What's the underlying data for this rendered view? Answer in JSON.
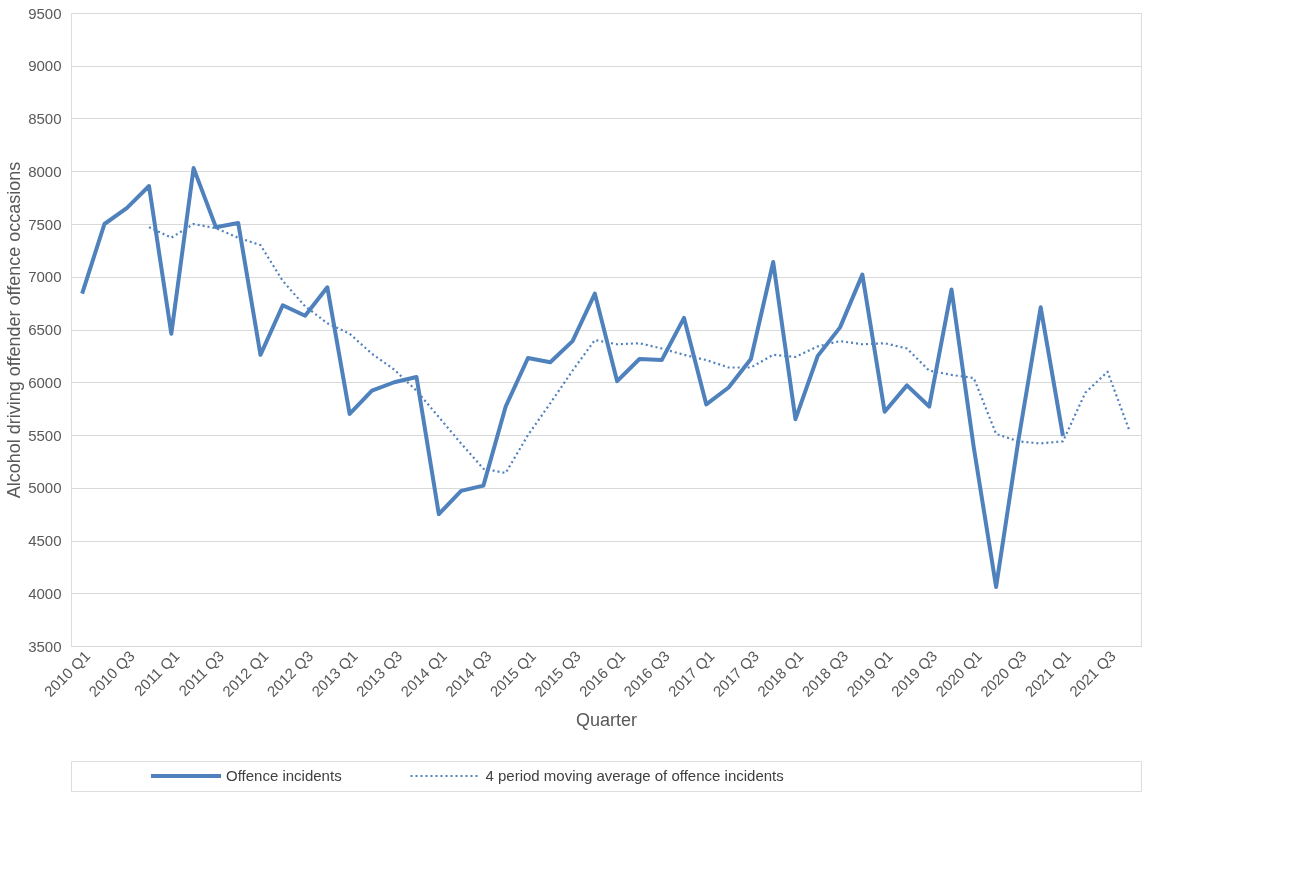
{
  "chart_data": {
    "type": "line",
    "xlabel": "Quarter",
    "ylabel": "Alcohol driving offender offence occasions",
    "categories": [
      "2010 Q1",
      null,
      "2010 Q3",
      null,
      "2011 Q1",
      null,
      "2011 Q3",
      null,
      "2012 Q1",
      null,
      "2012 Q3",
      null,
      "2013 Q1",
      null,
      "2013 Q3",
      null,
      "2014 Q1",
      null,
      "2014 Q3",
      null,
      "2015 Q1",
      null,
      "2015 Q3",
      null,
      "2016 Q1",
      null,
      "2016 Q3",
      null,
      "2017 Q1",
      null,
      "2017 Q3",
      null,
      "2018 Q1",
      null,
      "2018 Q3",
      null,
      "2019 Q1",
      null,
      "2019 Q3",
      null,
      "2020 Q1",
      null,
      "2020 Q3",
      null,
      "2021 Q1",
      null,
      "2021 Q3",
      null
    ],
    "series": [
      {
        "name": "Offence incidents",
        "color": "#4f81bd",
        "line_style": "solid",
        "values": [
          6840,
          7500,
          7650,
          7860,
          6460,
          8030,
          7470,
          7510,
          6260,
          6730,
          6630,
          6900,
          5700,
          5920,
          6000,
          6050,
          4750,
          4970,
          5020,
          5770,
          6230,
          6190,
          6390,
          6840,
          6010,
          6220,
          6210,
          6610,
          5790,
          5950,
          6220,
          7140,
          5650,
          6250,
          6520,
          7020,
          5720,
          5970,
          5770,
          6880,
          5380,
          4060,
          5450,
          6710,
          5490,
          null,
          null,
          null
        ]
      },
      {
        "name": "4 period moving average of offence incidents",
        "color": "#4f81bd",
        "line_style": "dotted",
        "values": [
          null,
          null,
          null,
          7470,
          7370,
          7500,
          7460,
          7370,
          7300,
          6960,
          6720,
          6560,
          6460,
          6270,
          6120,
          5920,
          5670,
          5420,
          5180,
          5140,
          5500,
          5800,
          6110,
          6400,
          6360,
          6370,
          6320,
          6260,
          6210,
          6140,
          6140,
          6260,
          6240,
          6340,
          6390,
          6360,
          6370,
          6320,
          6110,
          6070,
          6040,
          5510,
          5440,
          5420,
          5440,
          5900,
          6100,
          5530
        ]
      }
    ],
    "ylim": [
      3500,
      9500
    ],
    "yticks": [
      3500,
      4000,
      4500,
      5000,
      5500,
      6000,
      6500,
      7000,
      7500,
      8000,
      8500,
      9000,
      9500
    ],
    "grid": "y",
    "legend": "bottom"
  }
}
